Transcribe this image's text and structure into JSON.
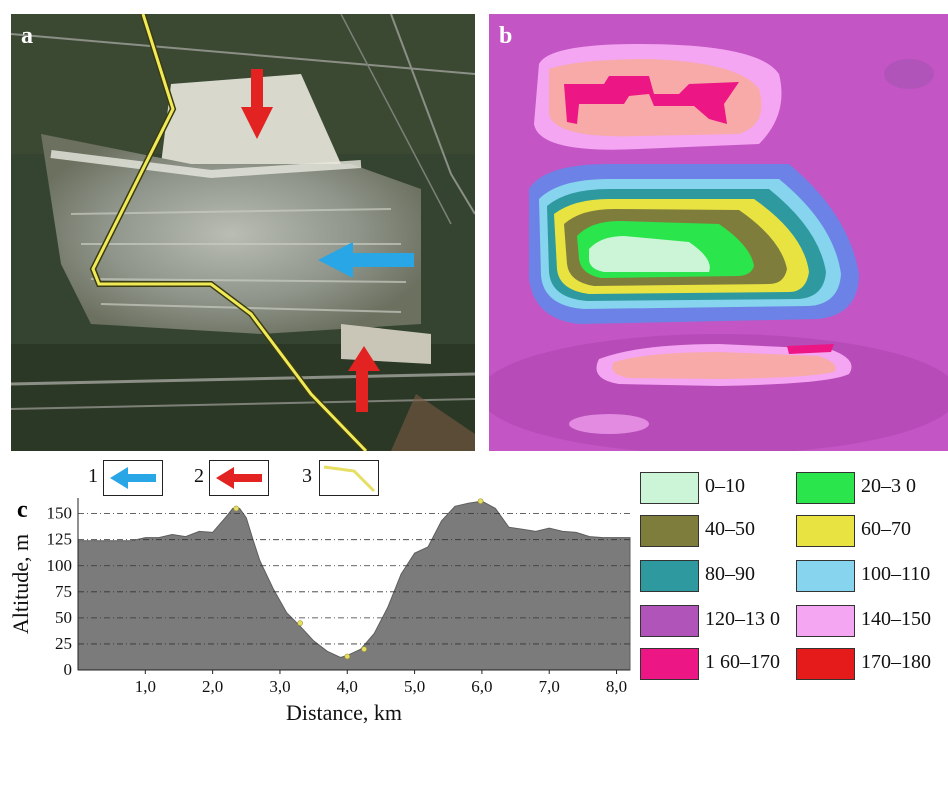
{
  "panels": {
    "a": {
      "label": "a"
    },
    "b": {
      "label": "b"
    },
    "c": {
      "label": "c"
    }
  },
  "arrow_legend": [
    {
      "num": "1",
      "kind": "blue-arrow",
      "color": "#29a6e6"
    },
    {
      "num": "2",
      "kind": "red-arrow",
      "color": "#e32222"
    },
    {
      "num": "3",
      "kind": "yellow-line",
      "color": "#e6df63"
    }
  ],
  "elevation_legend": [
    {
      "label": "0–10",
      "color": "#ccf5d8"
    },
    {
      "label": "20–3 0",
      "color": "#2ae54b"
    },
    {
      "label": "40–50",
      "color": "#7f7d3c"
    },
    {
      "label": "60–70",
      "color": "#e8e340"
    },
    {
      "label": "80–90",
      "color": "#2e9aa0"
    },
    {
      "label": "100–110",
      "color": "#86d4ee"
    },
    {
      "label": "120–13 0",
      "color": "#b154b9"
    },
    {
      "label": "140–150",
      "color": "#f4a6f2"
    },
    {
      "label": "1 60–170",
      "color": "#ec1684"
    },
    {
      "label": "170–180",
      "color": "#e51a1a"
    }
  ],
  "chart_data": {
    "type": "area",
    "xlabel": "Distance, km",
    "ylabel": "Altitude, m",
    "xlim": [
      0,
      8.2
    ],
    "ylim": [
      0,
      165
    ],
    "x_ticks": [
      1.0,
      2.0,
      3.0,
      4.0,
      5.0,
      6.0,
      7.0,
      8.0
    ],
    "x_tick_labels": [
      "1,0",
      "2,0",
      "3,0",
      "4,0",
      "5,0",
      "6,0",
      "7,0",
      "8,0"
    ],
    "y_ticks": [
      0,
      25,
      50,
      75,
      100,
      125,
      150
    ],
    "y_tick_labels": [
      "0",
      "25",
      "50",
      "75",
      "100",
      "125",
      "150"
    ],
    "grid": "horizontal dashed",
    "fill_color": "#7b7b7b",
    "x": [
      0.0,
      0.5,
      0.8,
      1.0,
      1.2,
      1.4,
      1.6,
      1.8,
      2.0,
      2.2,
      2.3,
      2.4,
      2.5,
      2.6,
      2.7,
      2.9,
      3.1,
      3.3,
      3.5,
      3.7,
      3.9,
      4.0,
      4.2,
      4.4,
      4.6,
      4.8,
      5.0,
      5.2,
      5.4,
      5.6,
      5.8,
      6.0,
      6.2,
      6.4,
      6.6,
      6.8,
      7.0,
      7.2,
      7.4,
      7.6,
      7.8,
      8.0,
      8.2
    ],
    "y": [
      124,
      124,
      124,
      127,
      127,
      130,
      128,
      133,
      132,
      147,
      155,
      155,
      146,
      125,
      105,
      78,
      55,
      42,
      28,
      18,
      12,
      14,
      20,
      35,
      60,
      92,
      112,
      118,
      143,
      157,
      160,
      162,
      155,
      137,
      135,
      133,
      136,
      133,
      132,
      128,
      127,
      127,
      127
    ],
    "markers": [
      {
        "x": 2.35,
        "y": 155
      },
      {
        "x": 3.3,
        "y": 45
      },
      {
        "x": 4.0,
        "y": 13
      },
      {
        "x": 4.25,
        "y": 20
      },
      {
        "x": 5.98,
        "y": 162
      }
    ]
  }
}
